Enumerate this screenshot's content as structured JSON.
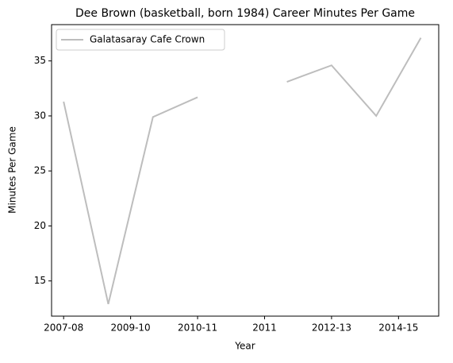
{
  "chart_data": {
    "type": "line",
    "title": "Dee Brown (basketball, born 1984) Career Minutes Per Game",
    "xlabel": "Year",
    "ylabel": "Minutes Per Game",
    "x": [
      0,
      1,
      2,
      3,
      4,
      5,
      6,
      7,
      8
    ],
    "series": [
      {
        "name": "Galatasaray Cafe Crown",
        "color": "#bdbdbd",
        "values": [
          31.3,
          12.9,
          29.9,
          31.7,
          null,
          33.1,
          34.6,
          30.0,
          37.1
        ]
      }
    ],
    "xlim": [
      -0.27,
      8.4
    ],
    "xticks": [
      {
        "value": 0,
        "label": "2007-08"
      },
      {
        "value": 1.5,
        "label": "2009-10"
      },
      {
        "value": 3,
        "label": "2010-11"
      },
      {
        "value": 4.5,
        "label": "2011"
      },
      {
        "value": 6,
        "label": "2012-13"
      },
      {
        "value": 7.5,
        "label": "2014-15"
      }
    ],
    "ylim": [
      11.8,
      38.3
    ],
    "yticks": [
      15,
      20,
      25,
      30,
      35
    ],
    "legend": "upper left"
  }
}
